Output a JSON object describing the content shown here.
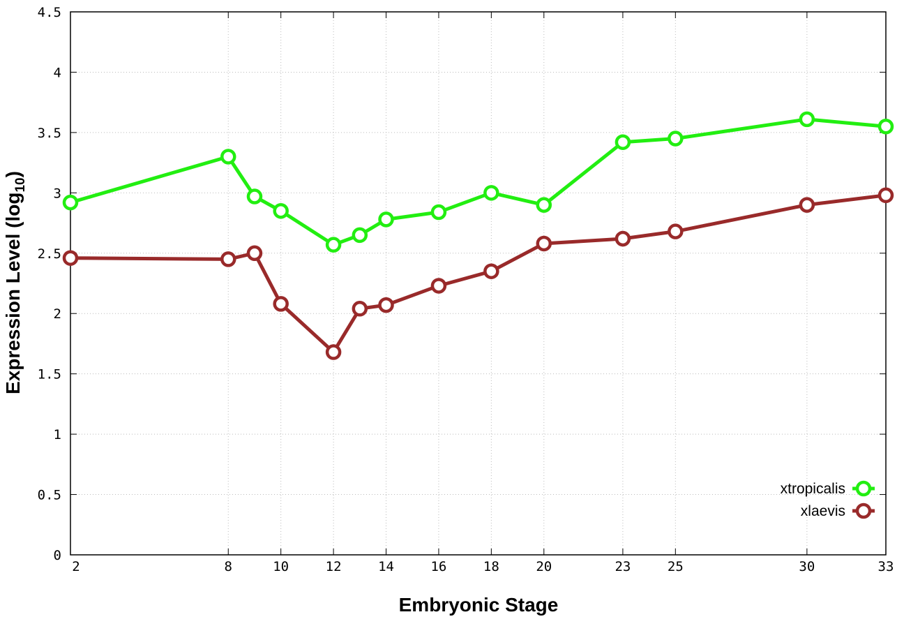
{
  "chart_data": {
    "type": "line",
    "xlabel": "Embryonic Stage",
    "ylabel": {
      "main": "Expression Level (log",
      "sub": "10",
      "close": ")"
    },
    "xlim": [
      2,
      33
    ],
    "ylim": [
      0,
      4.5
    ],
    "x_ticks": [
      2,
      8,
      10,
      12,
      14,
      16,
      18,
      20,
      23,
      25,
      30,
      33
    ],
    "x_tick_labels": [
      "2",
      "8",
      "10",
      "12",
      "14",
      "16",
      "18",
      "20",
      "23",
      "25",
      "30",
      "33"
    ],
    "y_ticks": [
      0,
      0.5,
      1,
      1.5,
      2,
      2.5,
      3,
      3.5,
      4,
      4.5
    ],
    "y_tick_labels": [
      "0",
      "0.5",
      "1",
      "1.5",
      "2",
      "2.5",
      "3",
      "3.5",
      "4",
      "4.5"
    ],
    "grid": true,
    "legend_position": "bottom-right",
    "x": [
      2,
      8,
      9,
      10,
      12,
      13,
      14,
      16,
      18,
      20,
      23,
      25,
      30,
      33
    ],
    "series": [
      {
        "name": "xtropicalis",
        "color": "#22ee11",
        "values": [
          2.92,
          3.3,
          2.97,
          2.85,
          2.57,
          2.65,
          2.78,
          2.84,
          3.0,
          2.9,
          3.42,
          3.45,
          3.61,
          3.55
        ]
      },
      {
        "name": "xlaevis",
        "color": "#992a2a",
        "values": [
          2.46,
          2.45,
          2.5,
          2.08,
          1.68,
          2.04,
          2.07,
          2.23,
          2.35,
          2.58,
          2.62,
          2.68,
          2.9,
          2.98
        ]
      }
    ]
  }
}
